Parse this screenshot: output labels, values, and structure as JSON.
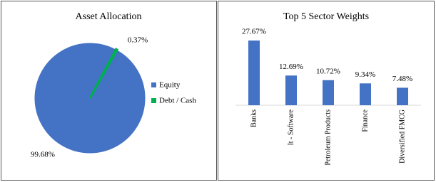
{
  "chart_data": [
    {
      "type": "pie",
      "title": "Asset Allocation",
      "categories": [
        "Equity",
        "Debt / Cash"
      ],
      "values": [
        99.68,
        0.37
      ],
      "value_labels": [
        "99.68%",
        "0.37%"
      ],
      "colors": [
        "#4472c4",
        "#00b050"
      ],
      "legend": "right"
    },
    {
      "type": "bar",
      "title": "Top 5 Sector Weights",
      "categories": [
        "Banks",
        "It - Software",
        "Petroleum Products",
        "Finance",
        "Diversified FMCG"
      ],
      "values": [
        27.67,
        12.69,
        10.72,
        9.34,
        7.48
      ],
      "value_labels": [
        "27.67%",
        "12.69%",
        "10.72%",
        "9.34%",
        "7.48%"
      ],
      "color": "#4472c4"
    }
  ]
}
